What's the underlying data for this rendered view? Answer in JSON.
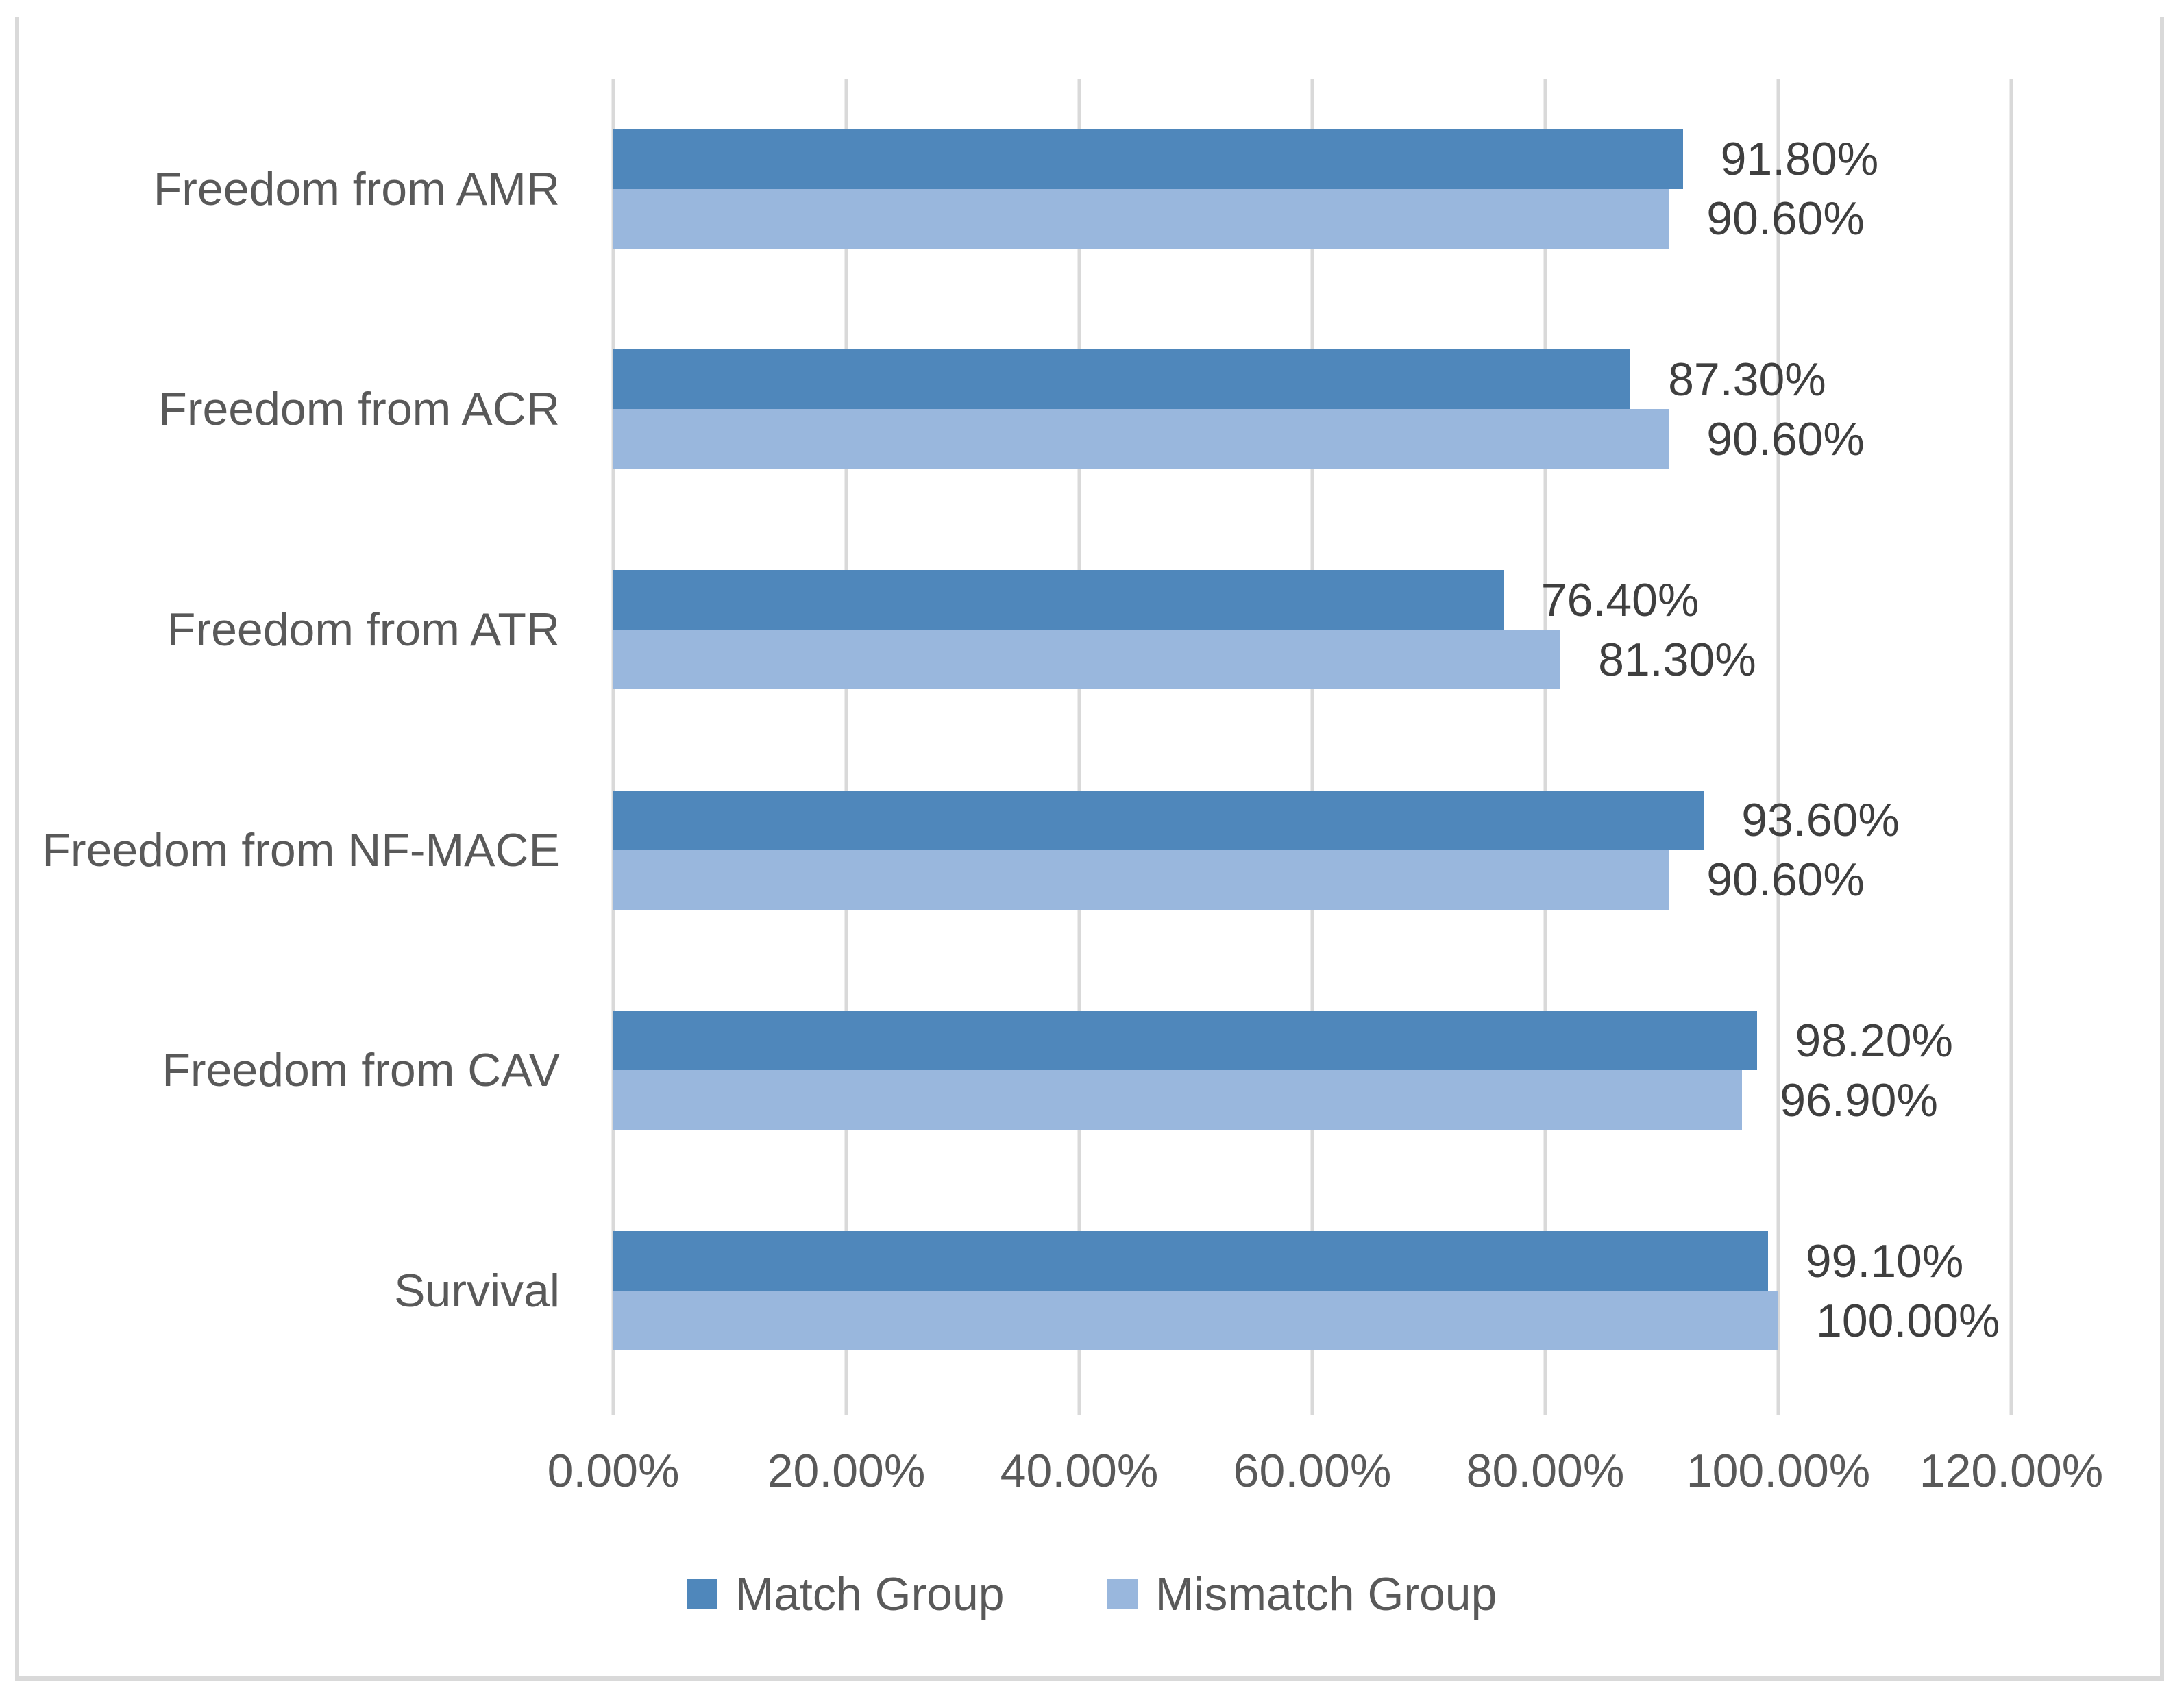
{
  "chart_data": {
    "type": "bar",
    "orientation": "horizontal",
    "title": "",
    "xlabel": "",
    "ylabel": "",
    "categories": [
      "Freedom from AMR",
      "Freedom from ACR",
      "Freedom from ATR",
      "Freedom from NF-MACE",
      "Freedom from CAV",
      "Survival"
    ],
    "series": [
      {
        "name": "Match Group",
        "color": "#4F87BB",
        "values": [
          91.8,
          87.3,
          76.4,
          93.6,
          98.2,
          99.1
        ],
        "labels": [
          "91.80%",
          "87.30%",
          "76.40%",
          "93.60%",
          "98.20%",
          "99.10%"
        ]
      },
      {
        "name": "Mismatch Group",
        "color": "#99B7DD",
        "values": [
          90.6,
          90.6,
          81.3,
          90.6,
          96.9,
          100.0
        ],
        "labels": [
          "90.60%",
          "90.60%",
          "81.30%",
          "90.60%",
          "96.90%",
          "100.00%"
        ]
      }
    ],
    "xlim": [
      0,
      120
    ],
    "x_tick_values": [
      0,
      20,
      40,
      60,
      80,
      100,
      120
    ],
    "x_ticks": [
      "0.00%",
      "20.00%",
      "40.00%",
      "60.00%",
      "80.00%",
      "100.00%",
      "120.00%"
    ],
    "grid": true,
    "legend_position": "bottom",
    "gridline_color": "#D9D9D9",
    "border_color": "#D9D9D9",
    "axis_text_color": "#595959",
    "data_label_color": "#3F3F3F"
  }
}
